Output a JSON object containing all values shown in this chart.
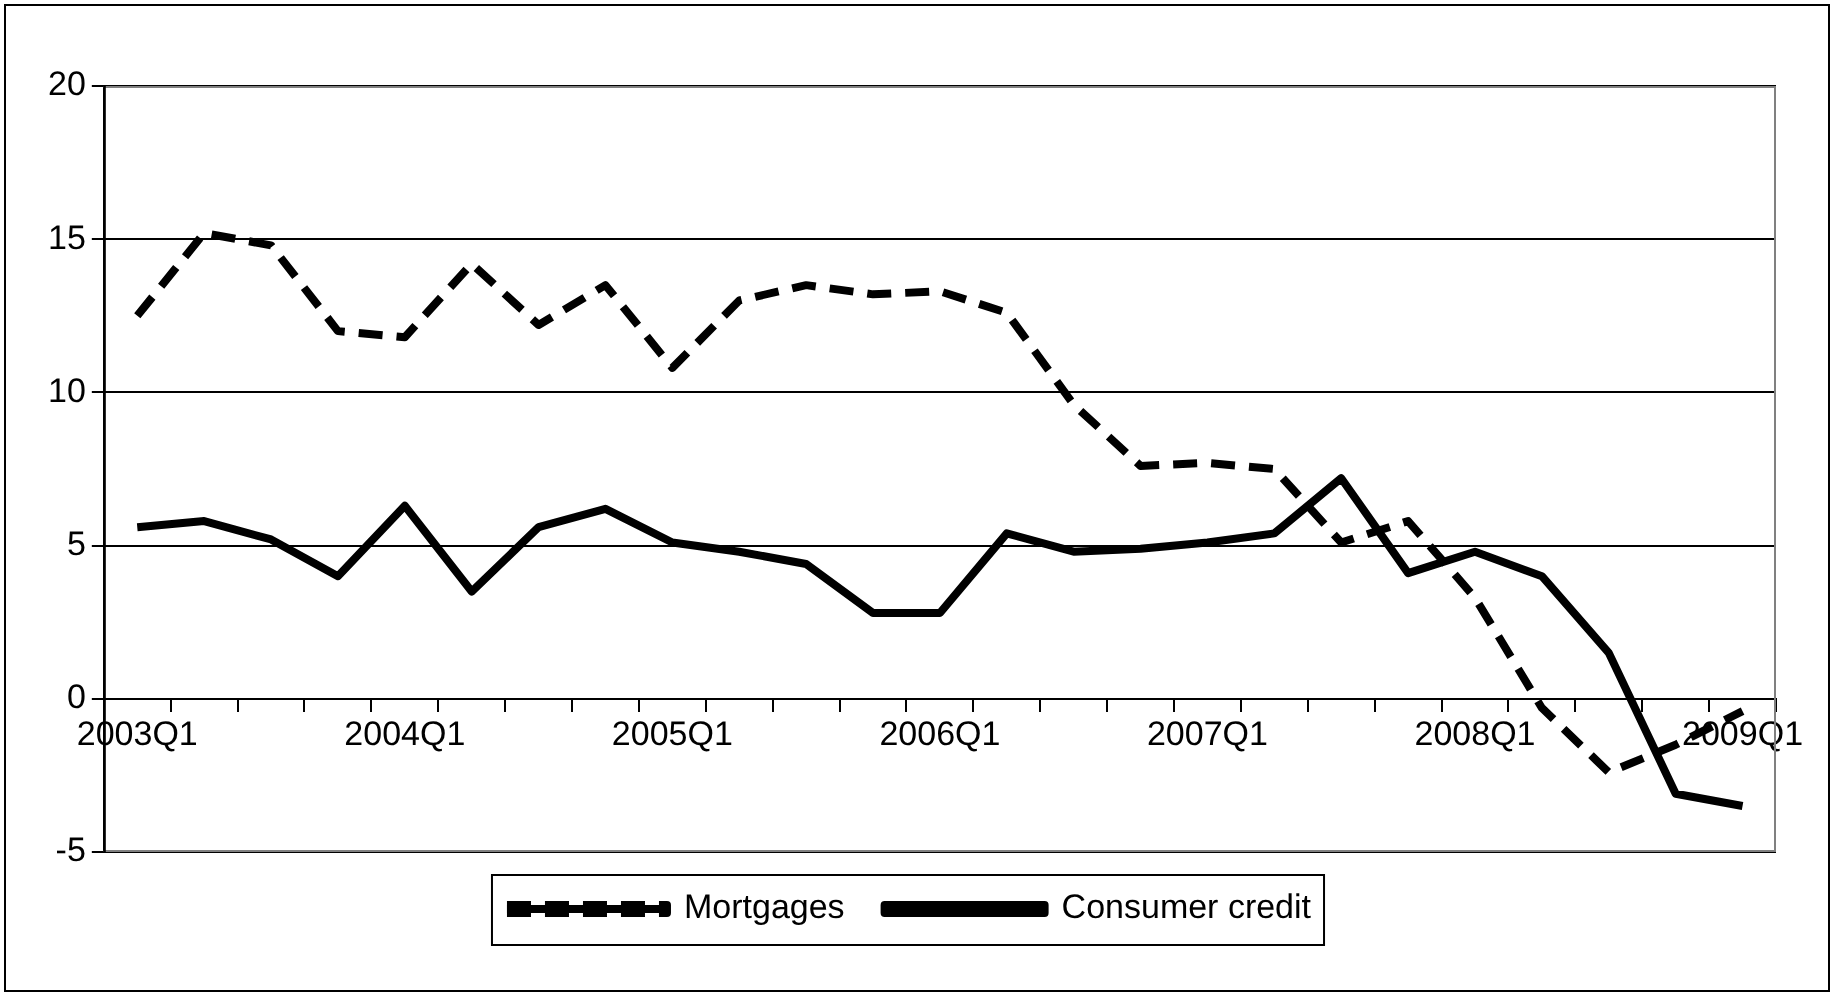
{
  "chart_data": {
    "type": "line",
    "categories": [
      "2003Q1",
      null,
      null,
      null,
      "2004Q1",
      null,
      null,
      null,
      "2005Q1",
      null,
      null,
      null,
      "2006Q1",
      null,
      null,
      null,
      "2007Q1",
      null,
      null,
      null,
      "2008Q1",
      null,
      null,
      null,
      "2009Q1"
    ],
    "series": [
      {
        "name": "Mortgages",
        "color": "#000000",
        "line_style": "dashed",
        "values": [
          12.5,
          15.2,
          14.8,
          12.0,
          11.8,
          14.2,
          12.2,
          13.5,
          10.8,
          13.0,
          13.5,
          13.2,
          13.3,
          12.6,
          9.6,
          7.6,
          7.7,
          7.5,
          5.1,
          5.8,
          3.3,
          -0.3,
          -2.4,
          -1.5,
          -0.4
        ]
      },
      {
        "name": "Consumer credit",
        "color": "#000000",
        "line_style": "solid",
        "values": [
          5.6,
          5.8,
          5.2,
          4.0,
          6.3,
          3.5,
          5.6,
          6.2,
          5.1,
          4.8,
          4.4,
          2.8,
          2.8,
          5.4,
          4.8,
          4.9,
          5.1,
          5.4,
          7.2,
          4.1,
          4.8,
          4.0,
          1.5,
          -3.1,
          -3.5
        ]
      }
    ],
    "ylim": [
      -5,
      20
    ],
    "yticks": [
      -5,
      0,
      5,
      10,
      15,
      20
    ],
    "grid": "y",
    "legend": "bottom",
    "marker": "none"
  }
}
